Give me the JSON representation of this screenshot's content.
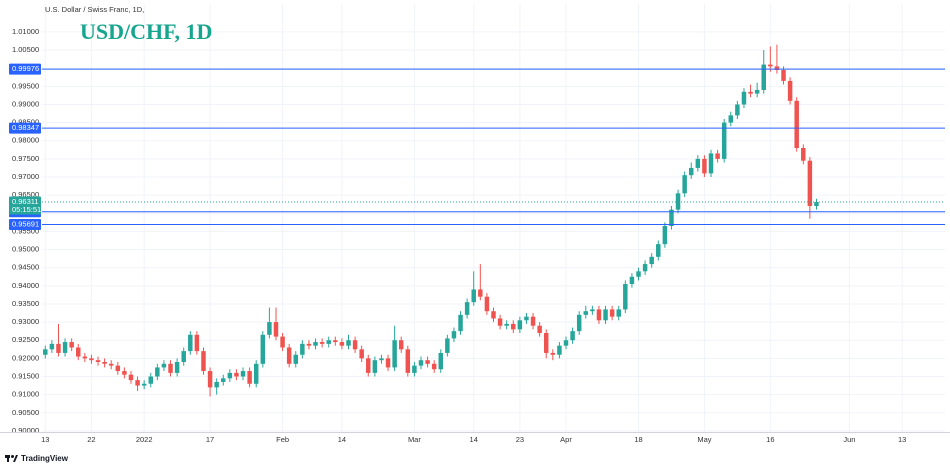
{
  "chart_data": {
    "type": "candlestick",
    "subtitle": "U.S. Dollar / Swiss Franc, 1D,",
    "title": "USD/CHF, 1D",
    "brand": "TradingView",
    "up_color": "#26a69a",
    "down_color": "#ef5350",
    "grid": true,
    "ylim": [
      0.8997,
      1.0177
    ],
    "xlim": [
      -0.5,
      136.5
    ],
    "yticks": [
      {
        "value": 0.9,
        "label": "0.90000"
      },
      {
        "value": 0.905,
        "label": "0.90500"
      },
      {
        "value": 0.91,
        "label": "0.91000"
      },
      {
        "value": 0.915,
        "label": "0.91500"
      },
      {
        "value": 0.92,
        "label": "0.92000"
      },
      {
        "value": 0.925,
        "label": "0.92500"
      },
      {
        "value": 0.93,
        "label": "0.93000"
      },
      {
        "value": 0.935,
        "label": "0.93500"
      },
      {
        "value": 0.94,
        "label": "0.94000"
      },
      {
        "value": 0.945,
        "label": "0.94500"
      },
      {
        "value": 0.95,
        "label": "0.95000"
      },
      {
        "value": 0.955,
        "label": "0.95500"
      },
      {
        "value": 0.96,
        "label": "0.96000"
      },
      {
        "value": 0.965,
        "label": "0.96500"
      },
      {
        "value": 0.97,
        "label": "0.97000"
      },
      {
        "value": 0.975,
        "label": "0.97500"
      },
      {
        "value": 0.98,
        "label": "0.98000"
      },
      {
        "value": 0.985,
        "label": "0.98500"
      },
      {
        "value": 0.99,
        "label": "0.99000"
      },
      {
        "value": 0.995,
        "label": "0.99500"
      },
      {
        "value": 1.0,
        "label": "1.00000"
      },
      {
        "value": 1.005,
        "label": "1.00500"
      },
      {
        "value": 1.01,
        "label": "1.01000"
      }
    ],
    "xticks": [
      {
        "value": 0,
        "label": "13"
      },
      {
        "value": 7,
        "label": "22"
      },
      {
        "value": 15,
        "label": "2022"
      },
      {
        "value": 25,
        "label": "17"
      },
      {
        "value": 36,
        "label": "Feb"
      },
      {
        "value": 45,
        "label": "14"
      },
      {
        "value": 56,
        "label": "Mar"
      },
      {
        "value": 65,
        "label": "14"
      },
      {
        "value": 72,
        "label": "23"
      },
      {
        "value": 79,
        "label": "Apr"
      },
      {
        "value": 90,
        "label": "18"
      },
      {
        "value": 100,
        "label": "May"
      },
      {
        "value": 110,
        "label": "16"
      },
      {
        "value": 122,
        "label": "Jun"
      },
      {
        "value": 130,
        "label": "13"
      }
    ],
    "hlines": [
      0.99976,
      0.98347,
      0.96044,
      0.95691
    ],
    "hline_color": "#2962ff",
    "current_price": 0.96311,
    "countdown": "05:15:51",
    "open": [
      0.921,
      0.9225,
      0.924,
      0.9215,
      0.9245,
      0.923,
      0.9205,
      0.92,
      0.9195,
      0.919,
      0.9185,
      0.918,
      0.9165,
      0.9155,
      0.914,
      0.9125,
      0.913,
      0.915,
      0.9175,
      0.9185,
      0.916,
      0.919,
      0.922,
      0.9265,
      0.922,
      0.9165,
      0.912,
      0.9135,
      0.9145,
      0.916,
      0.915,
      0.9165,
      0.913,
      0.9185,
      0.9265,
      0.93,
      0.926,
      0.923,
      0.9185,
      0.921,
      0.924,
      0.9235,
      0.9245,
      0.924,
      0.925,
      0.9245,
      0.9235,
      0.925,
      0.9225,
      0.92,
      0.916,
      0.9195,
      0.92,
      0.9175,
      0.925,
      0.9225,
      0.916,
      0.918,
      0.9195,
      0.9185,
      0.917,
      0.9215,
      0.9255,
      0.9275,
      0.932,
      0.9355,
      0.939,
      0.937,
      0.933,
      0.931,
      0.929,
      0.9295,
      0.928,
      0.9305,
      0.9315,
      0.929,
      0.927,
      0.9215,
      0.921,
      0.9235,
      0.925,
      0.9275,
      0.932,
      0.933,
      0.9335,
      0.9305,
      0.9335,
      0.9315,
      0.9335,
      0.9405,
      0.9425,
      0.944,
      0.946,
      0.948,
      0.9515,
      0.9565,
      0.961,
      0.9655,
      0.9705,
      0.9725,
      0.975,
      0.971,
      0.9765,
      0.975,
      0.985,
      0.987,
      0.99,
      0.9935,
      0.993,
      0.994,
      1.001,
      1.0005,
      0.9995,
      0.9965,
      0.991,
      0.978,
      0.9745,
      0.962
    ],
    "high": [
      0.9235,
      0.925,
      0.9295,
      0.9255,
      0.9255,
      0.924,
      0.9215,
      0.921,
      0.9205,
      0.92,
      0.9195,
      0.919,
      0.9175,
      0.9165,
      0.915,
      0.914,
      0.916,
      0.9185,
      0.9195,
      0.9195,
      0.92,
      0.923,
      0.9275,
      0.9275,
      0.923,
      0.9175,
      0.9145,
      0.9155,
      0.917,
      0.917,
      0.9175,
      0.9175,
      0.9195,
      0.9275,
      0.934,
      0.934,
      0.927,
      0.924,
      0.922,
      0.925,
      0.925,
      0.9255,
      0.9255,
      0.926,
      0.926,
      0.9255,
      0.9265,
      0.926,
      0.9235,
      0.921,
      0.9205,
      0.921,
      0.921,
      0.929,
      0.926,
      0.9235,
      0.919,
      0.9205,
      0.9205,
      0.9195,
      0.9225,
      0.9265,
      0.9285,
      0.933,
      0.9365,
      0.944,
      0.946,
      0.938,
      0.934,
      0.932,
      0.9305,
      0.9305,
      0.9315,
      0.9325,
      0.9325,
      0.93,
      0.928,
      0.9225,
      0.9245,
      0.926,
      0.9285,
      0.933,
      0.9345,
      0.9345,
      0.9345,
      0.9345,
      0.9345,
      0.9345,
      0.9415,
      0.9435,
      0.945,
      0.947,
      0.949,
      0.9525,
      0.9575,
      0.962,
      0.9665,
      0.9715,
      0.974,
      0.976,
      0.976,
      0.9775,
      0.9775,
      0.986,
      0.988,
      0.991,
      0.9945,
      0.9955,
      0.996,
      1.005,
      1.006,
      1.0065,
      1.0005,
      0.9975,
      0.992,
      0.979,
      0.9755,
      0.964
    ],
    "low": [
      0.92,
      0.9215,
      0.9205,
      0.9205,
      0.922,
      0.9195,
      0.919,
      0.9185,
      0.918,
      0.9175,
      0.917,
      0.9155,
      0.9145,
      0.913,
      0.911,
      0.9115,
      0.912,
      0.914,
      0.9165,
      0.915,
      0.915,
      0.918,
      0.921,
      0.921,
      0.9155,
      0.9095,
      0.91,
      0.9125,
      0.9135,
      0.914,
      0.914,
      0.912,
      0.912,
      0.9175,
      0.9255,
      0.925,
      0.922,
      0.9175,
      0.9175,
      0.92,
      0.9225,
      0.9225,
      0.923,
      0.923,
      0.9235,
      0.9225,
      0.9225,
      0.9215,
      0.919,
      0.915,
      0.915,
      0.9185,
      0.9165,
      0.9165,
      0.9215,
      0.915,
      0.915,
      0.917,
      0.9175,
      0.916,
      0.916,
      0.9205,
      0.9245,
      0.9265,
      0.931,
      0.9345,
      0.936,
      0.932,
      0.93,
      0.928,
      0.928,
      0.927,
      0.927,
      0.9295,
      0.928,
      0.926,
      0.92,
      0.9195,
      0.92,
      0.9225,
      0.924,
      0.9265,
      0.931,
      0.932,
      0.9295,
      0.9295,
      0.9305,
      0.9305,
      0.9325,
      0.9395,
      0.9415,
      0.943,
      0.945,
      0.947,
      0.9505,
      0.9555,
      0.96,
      0.9645,
      0.9695,
      0.9715,
      0.97,
      0.97,
      0.974,
      0.974,
      0.984,
      0.986,
      0.989,
      0.992,
      0.992,
      0.993,
      0.999,
      0.9985,
      0.9955,
      0.99,
      0.977,
      0.9735,
      0.9585,
      0.961
    ],
    "close": [
      0.9225,
      0.924,
      0.9215,
      0.9245,
      0.923,
      0.9205,
      0.92,
      0.9195,
      0.919,
      0.9185,
      0.918,
      0.9165,
      0.9155,
      0.914,
      0.9125,
      0.913,
      0.915,
      0.9175,
      0.9185,
      0.916,
      0.919,
      0.922,
      0.9265,
      0.922,
      0.9165,
      0.912,
      0.9135,
      0.9145,
      0.916,
      0.915,
      0.9165,
      0.913,
      0.9185,
      0.9265,
      0.93,
      0.926,
      0.923,
      0.9185,
      0.921,
      0.924,
      0.9235,
      0.9245,
      0.924,
      0.925,
      0.9245,
      0.9235,
      0.925,
      0.9225,
      0.92,
      0.916,
      0.9195,
      0.92,
      0.9175,
      0.925,
      0.9225,
      0.916,
      0.918,
      0.9195,
      0.9185,
      0.917,
      0.9215,
      0.9255,
      0.9275,
      0.932,
      0.9355,
      0.939,
      0.937,
      0.933,
      0.931,
      0.929,
      0.9295,
      0.928,
      0.9305,
      0.9315,
      0.929,
      0.927,
      0.9215,
      0.921,
      0.9235,
      0.925,
      0.9275,
      0.932,
      0.933,
      0.9335,
      0.9305,
      0.9335,
      0.9315,
      0.9335,
      0.9405,
      0.9425,
      0.944,
      0.946,
      0.948,
      0.9515,
      0.9565,
      0.961,
      0.9655,
      0.9705,
      0.9725,
      0.975,
      0.971,
      0.9765,
      0.975,
      0.985,
      0.987,
      0.99,
      0.9935,
      0.993,
      0.994,
      1.001,
      1.0005,
      0.9995,
      0.9965,
      0.991,
      0.978,
      0.9745,
      0.962,
      0.9631
    ]
  }
}
